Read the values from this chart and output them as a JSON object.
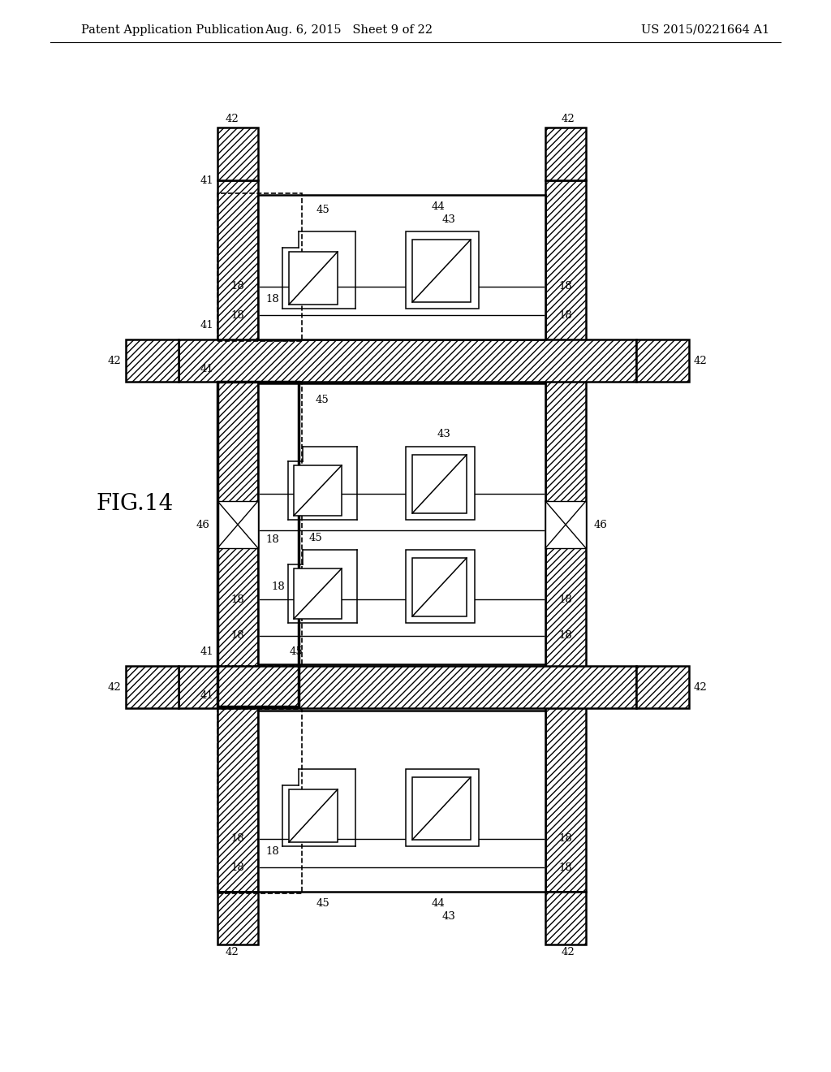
{
  "bg_color": "#ffffff",
  "line_color": "#000000",
  "header_left": "Patent Application Publication",
  "header_mid": "Aug. 6, 2015   Sheet 9 of 22",
  "header_right": "US 2015/0221664 A1",
  "fig_label": "FIG.14",
  "header_fontsize": 10.5,
  "fig_label_fontsize": 20
}
